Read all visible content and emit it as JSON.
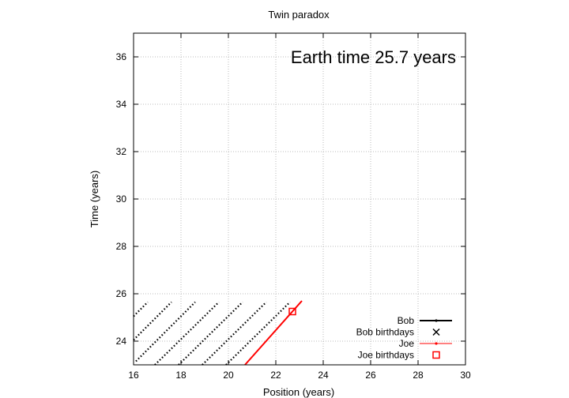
{
  "chart_data": {
    "type": "line",
    "title": "Twin paradox",
    "annotation": "Earth time 25.7 years",
    "xlabel": "Position (years)",
    "ylabel": "Time (years)",
    "xlim": [
      16,
      30
    ],
    "ylim": [
      23,
      37
    ],
    "xticks": [
      "16",
      "18",
      "20",
      "22",
      "24",
      "26",
      "28",
      "30"
    ],
    "yticks": [
      "24",
      "26",
      "28",
      "30",
      "32",
      "34",
      "36"
    ],
    "grid": true,
    "legend_position": "bottom-right",
    "legend": [
      {
        "label": "Bob",
        "marker": "line-dot",
        "color": "#000000"
      },
      {
        "label": "Bob birthdays",
        "marker": "x",
        "color": "#000000"
      },
      {
        "label": "Joe",
        "marker": "line-dot",
        "color": "#ff0000"
      },
      {
        "label": "Joe birthdays",
        "marker": "square",
        "color": "#ff0000"
      }
    ],
    "series": [
      {
        "name": "Bob",
        "color": "#000000",
        "style": "dotted",
        "segments": [
          {
            "x": [
              16.0,
              16.6
            ],
            "y": [
              25.05,
              25.65
            ]
          },
          {
            "x": [
              16.0,
              17.6
            ],
            "y": [
              24.05,
              25.65
            ]
          },
          {
            "x": [
              16.1,
              18.6
            ],
            "y": [
              23.15,
              25.65
            ]
          },
          {
            "x": [
              16.9,
              19.6
            ],
            "y": [
              23.0,
              25.65
            ]
          },
          {
            "x": [
              17.9,
              20.6
            ],
            "y": [
              23.0,
              25.65
            ]
          },
          {
            "x": [
              18.9,
              21.6
            ],
            "y": [
              23.0,
              25.65
            ]
          },
          {
            "x": [
              19.9,
              22.6
            ],
            "y": [
              23.0,
              25.65
            ]
          }
        ]
      },
      {
        "name": "Joe",
        "color": "#ff0000",
        "style": "solid",
        "segments": [
          {
            "x": [
              20.7,
              23.1
            ],
            "y": [
              23.0,
              25.7
            ]
          }
        ]
      }
    ],
    "birthdays": {
      "joe": [
        {
          "x": 22.7,
          "y": 25.25
        }
      ]
    }
  }
}
